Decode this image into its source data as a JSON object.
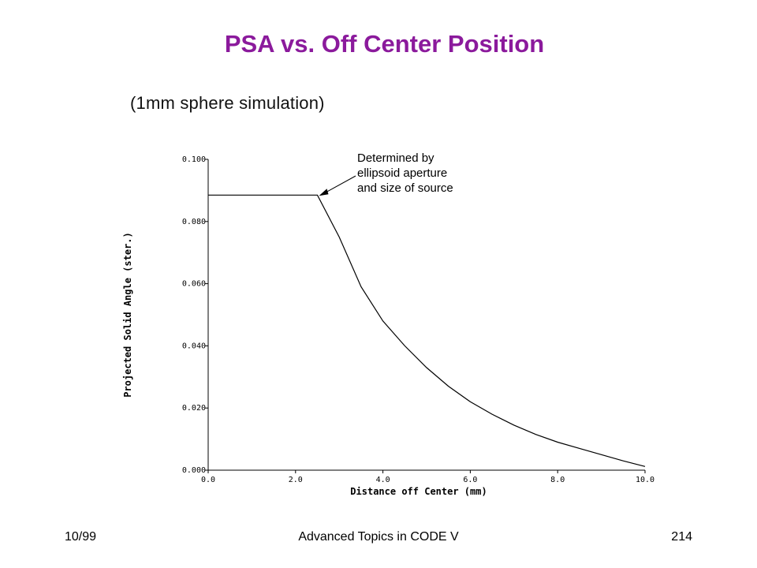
{
  "slide": {
    "title": "PSA vs. Off Center Position",
    "subtitle": "(1mm sphere simulation)"
  },
  "footer": {
    "date": "10/99",
    "course": "Advanced Topics in CODE V",
    "page": "214"
  },
  "chart_data": {
    "type": "line",
    "title": "",
    "xlabel": "Distance off Center (mm)",
    "ylabel": "Projected Solid Angle (ster.)",
    "xlim": [
      0.0,
      10.0
    ],
    "ylim": [
      0.0,
      0.1
    ],
    "x_ticks": [
      "0.0",
      "2.0",
      "4.0",
      "6.0",
      "8.0",
      "10.0"
    ],
    "y_ticks": [
      "0.000",
      "0.020",
      "0.040",
      "0.060",
      "0.080",
      "0.100"
    ],
    "grid": false,
    "series": [
      {
        "x": [
          0.0,
          2.5,
          3.0,
          3.5,
          4.0,
          4.5,
          5.0,
          5.5,
          6.0,
          6.5,
          7.0,
          7.5,
          8.0,
          8.5,
          9.0,
          9.5,
          10.0
        ],
        "y": [
          0.0885,
          0.0885,
          0.075,
          0.059,
          0.048,
          0.04,
          0.033,
          0.027,
          0.022,
          0.018,
          0.0145,
          0.0115,
          0.009,
          0.007,
          0.005,
          0.003,
          0.0012
        ]
      }
    ],
    "annotations": [
      {
        "text_lines": [
          "Determined by",
          "ellipsoid aperture",
          "and size of source"
        ],
        "point": [
          2.5,
          0.0885
        ]
      }
    ]
  },
  "colors": {
    "title": "#8b1a9c",
    "line": "#000000"
  }
}
